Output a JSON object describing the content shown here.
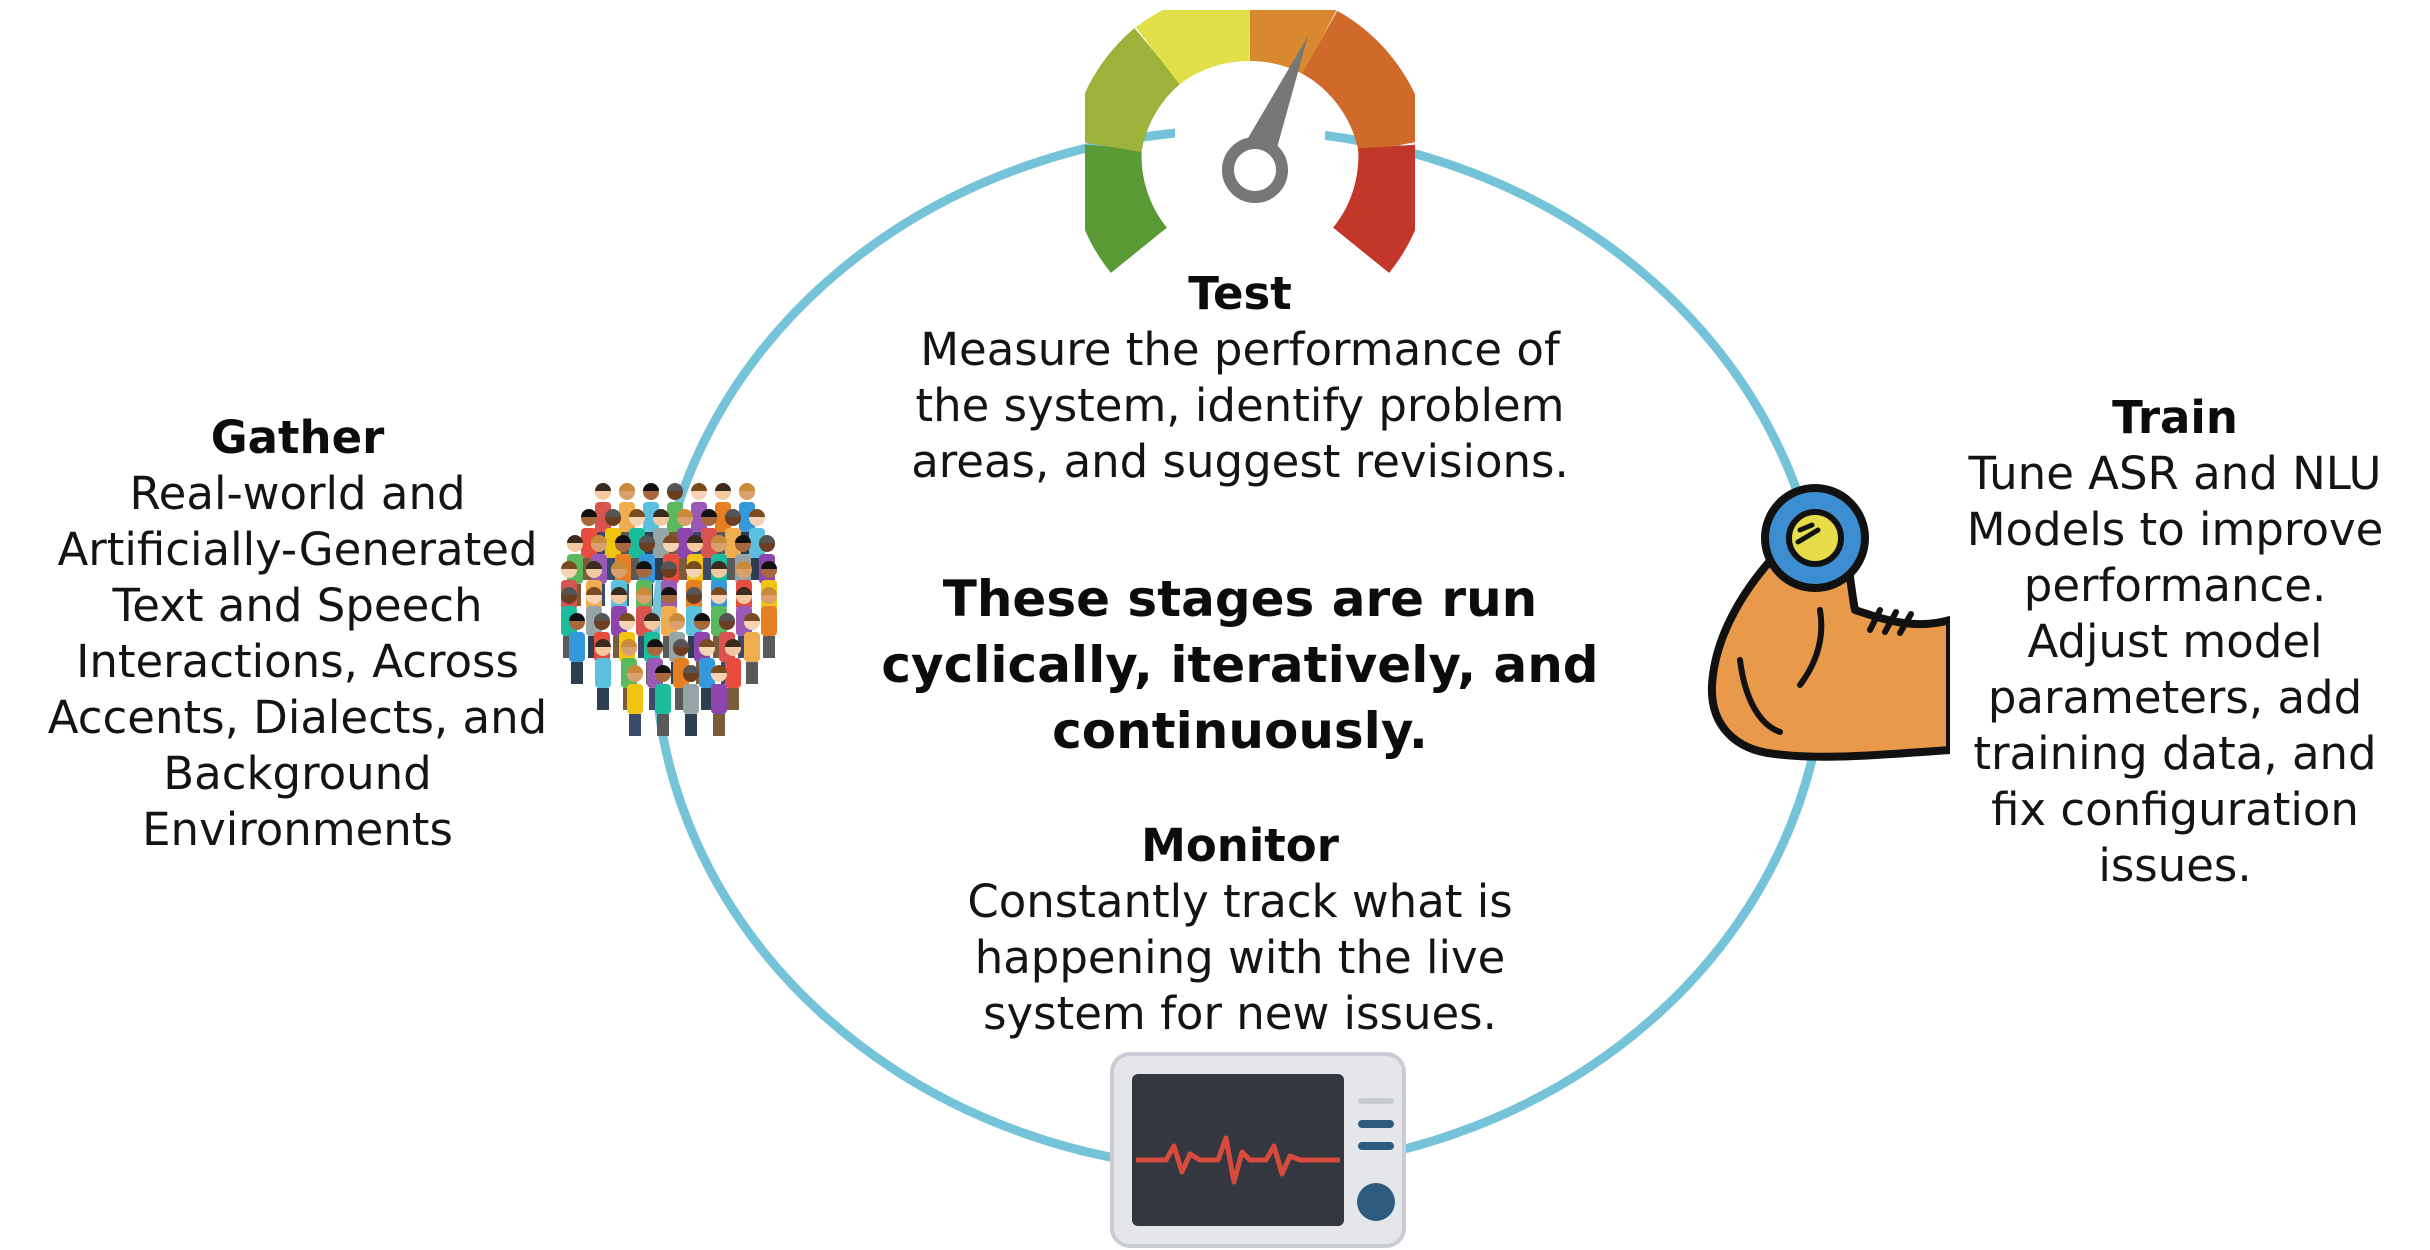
{
  "colors": {
    "ring": "#74c3d8",
    "gauge": [
      "#5a9a36",
      "#9cb23a",
      "#e2e048",
      "#d8882e",
      "#cf6a2a",
      "#c2372a"
    ],
    "needle": "#777777",
    "arm": "#e89a4a",
    "dumbbell": "#3d8ed1",
    "monitor_screen": "#34373f",
    "heartbeat": "#d84a3c"
  },
  "stages": {
    "test": {
      "title": "Test",
      "desc": "Measure the performance of\nthe system, identify problem\nareas, and suggest revisions.",
      "icon": "speedometer-icon"
    },
    "gather": {
      "title": "Gather",
      "desc": "Real-world and\nArtificially-Generated\nText and Speech\nInteractions, Across\nAccents, Dialects, and\nBackground\nEnvironments",
      "icon": "crowd-icon"
    },
    "train": {
      "title": "Train",
      "desc": "Tune ASR and NLU\nModels to improve\nperformance.\nAdjust model\nparameters, add\ntraining data, and\nfix configuration\nissues.",
      "icon": "flexed-arm-dumbbell-icon"
    },
    "monitor": {
      "title": "Monitor",
      "desc": "Constantly track what is\nhappening with the live\nsystem for new issues.",
      "icon": "heart-monitor-icon"
    }
  },
  "center_note": "These stages are run\ncyclically, iteratively, and\ncontinuously."
}
